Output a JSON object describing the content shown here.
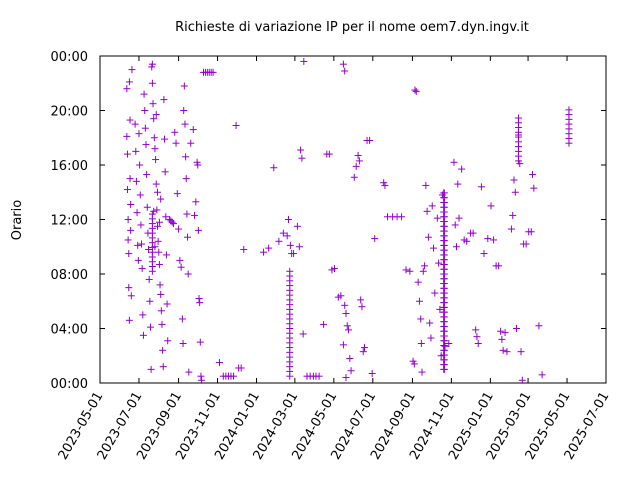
{
  "chart_data": {
    "type": "scatter",
    "title": "Richieste di variazione IP per il nome oem7.dyn.ingv.it",
    "xlabel": "",
    "ylabel": "Orario",
    "x_ticks": [
      "2023-05-01",
      "2023-07-01",
      "2023-09-01",
      "2023-11-01",
      "2024-01-01",
      "2024-03-01",
      "2024-05-01",
      "2024-07-01",
      "2024-09-01",
      "2024-11-01",
      "2025-01-01",
      "2025-03-01",
      "2025-05-01",
      "2025-07-01"
    ],
    "y_ticks": [
      "00:00",
      "04:00",
      "08:00",
      "12:00",
      "16:00",
      "20:00",
      "00:00"
    ],
    "xlim": [
      "2023-05-01",
      "2025-07-01"
    ],
    "ylim": [
      0,
      24
    ],
    "marker": "plus",
    "color": "#9400d3",
    "grid": false,
    "points": [
      [
        "2023-06-12",
        21.6
      ],
      [
        "2023-06-12",
        18.1
      ],
      [
        "2023-06-13",
        16.8
      ],
      [
        "2023-06-13",
        14.2
      ],
      [
        "2023-06-14",
        12.0
      ],
      [
        "2023-06-14",
        10.5
      ],
      [
        "2023-06-15",
        9.5
      ],
      [
        "2023-06-15",
        7.0
      ],
      [
        "2023-06-16",
        4.6
      ],
      [
        "2023-06-16",
        22.1
      ],
      [
        "2023-06-17",
        19.3
      ],
      [
        "2023-06-17",
        15.0
      ],
      [
        "2023-06-18",
        13.1
      ],
      [
        "2023-06-18",
        11.2
      ],
      [
        "2023-06-19",
        6.4
      ],
      [
        "2023-06-20",
        23.0
      ],
      [
        "2023-06-25",
        19.0
      ],
      [
        "2023-06-26",
        17.0
      ],
      [
        "2023-06-27",
        14.8
      ],
      [
        "2023-06-28",
        12.5
      ],
      [
        "2023-06-29",
        10.1
      ],
      [
        "2023-06-30",
        9.0
      ],
      [
        "2023-07-01",
        18.3
      ],
      [
        "2023-07-02",
        16.0
      ],
      [
        "2023-07-03",
        13.8
      ],
      [
        "2023-07-04",
        11.6
      ],
      [
        "2023-07-05",
        10.2
      ],
      [
        "2023-07-06",
        8.4
      ],
      [
        "2023-07-07",
        5.0
      ],
      [
        "2023-07-08",
        3.5
      ],
      [
        "2023-07-09",
        21.2
      ],
      [
        "2023-07-10",
        20.0
      ],
      [
        "2023-07-11",
        18.7
      ],
      [
        "2023-07-12",
        17.5
      ],
      [
        "2023-07-13",
        15.3
      ],
      [
        "2023-07-14",
        12.9
      ],
      [
        "2023-07-15",
        11.0
      ],
      [
        "2023-07-16",
        9.8
      ],
      [
        "2023-07-17",
        7.6
      ],
      [
        "2023-07-18",
        6.0
      ],
      [
        "2023-07-19",
        4.1
      ],
      [
        "2023-07-20",
        1.0
      ],
      [
        "2023-07-21",
        23.2
      ],
      [
        "2023-07-22",
        22.0
      ],
      [
        "2023-07-23",
        20.5
      ],
      [
        "2023-07-24",
        19.4
      ],
      [
        "2023-07-25",
        18.0
      ],
      [
        "2023-07-26",
        17.2
      ],
      [
        "2023-07-27",
        16.4
      ],
      [
        "2023-07-28",
        14.6
      ],
      [
        "2023-07-29",
        12.7
      ],
      [
        "2023-07-30",
        11.5
      ],
      [
        "2023-07-31",
        10.4
      ],
      [
        "2023-08-01",
        9.6
      ],
      [
        "2023-08-02",
        8.7
      ],
      [
        "2023-08-03",
        7.2
      ],
      [
        "2023-08-04",
        6.5
      ],
      [
        "2023-08-05",
        5.3
      ],
      [
        "2023-08-06",
        4.3
      ],
      [
        "2023-08-07",
        2.4
      ],
      [
        "2023-08-08",
        1.2
      ],
      [
        "2023-08-09",
        20.8
      ],
      [
        "2023-08-10",
        17.9
      ],
      [
        "2023-08-11",
        15.5
      ],
      [
        "2023-08-12",
        12.2
      ],
      [
        "2023-08-13",
        9.4
      ],
      [
        "2023-08-14",
        5.8
      ],
      [
        "2023-08-15",
        3.1
      ],
      [
        "2023-07-22",
        23.4
      ],
      [
        "2023-07-24",
        12.6
      ],
      [
        "2023-07-26",
        10.0
      ],
      [
        "2023-07-28",
        19.7
      ],
      [
        "2023-07-30",
        14.0
      ],
      [
        "2023-08-02",
        11.8
      ],
      [
        "2023-08-04",
        13.5
      ],
      [
        "2023-08-18",
        12.0
      ],
      [
        "2023-08-20",
        11.9
      ],
      [
        "2023-08-22",
        11.8
      ],
      [
        "2023-08-24",
        11.7
      ],
      [
        "2023-08-26",
        18.4
      ],
      [
        "2023-08-28",
        17.6
      ],
      [
        "2023-08-30",
        13.9
      ],
      [
        "2023-09-01",
        11.3
      ],
      [
        "2023-09-03",
        9.0
      ],
      [
        "2023-09-05",
        8.5
      ],
      [
        "2023-09-07",
        4.7
      ],
      [
        "2023-09-08",
        2.9
      ],
      [
        "2023-09-09",
        20.0
      ],
      [
        "2023-09-10",
        21.8
      ],
      [
        "2023-09-11",
        19.0
      ],
      [
        "2023-09-12",
        16.6
      ],
      [
        "2023-09-13",
        15.0
      ],
      [
        "2023-09-14",
        12.4
      ],
      [
        "2023-09-15",
        10.7
      ],
      [
        "2023-09-16",
        8.0
      ],
      [
        "2023-09-17",
        0.8
      ],
      [
        "2023-09-20",
        17.6
      ],
      [
        "2023-09-24",
        18.6
      ],
      [
        "2023-09-26",
        12.3
      ],
      [
        "2023-09-28",
        13.3
      ],
      [
        "2023-09-30",
        16.2
      ],
      [
        "2023-10-01",
        16.0
      ],
      [
        "2023-10-02",
        11.2
      ],
      [
        "2023-10-03",
        6.2
      ],
      [
        "2023-10-04",
        5.9
      ],
      [
        "2023-10-05",
        3.0
      ],
      [
        "2023-10-06",
        0.5
      ],
      [
        "2023-10-07",
        0.2
      ],
      [
        "2023-10-10",
        22.8
      ],
      [
        "2023-10-13",
        22.8
      ],
      [
        "2023-10-16",
        22.8
      ],
      [
        "2023-10-19",
        22.8
      ],
      [
        "2023-10-22",
        22.8
      ],
      [
        "2023-10-25",
        22.8
      ],
      [
        "2023-11-04",
        1.5
      ],
      [
        "2023-11-10",
        0.5
      ],
      [
        "2023-11-14",
        0.5
      ],
      [
        "2023-11-18",
        0.5
      ],
      [
        "2023-11-22",
        0.5
      ],
      [
        "2023-11-26",
        0.5
      ],
      [
        "2023-11-30",
        18.9
      ],
      [
        "2023-12-04",
        1.1
      ],
      [
        "2023-12-08",
        1.1
      ],
      [
        "2023-12-12",
        9.8
      ],
      [
        "2024-01-12",
        9.6
      ],
      [
        "2024-01-20",
        9.9
      ],
      [
        "2024-01-28",
        15.8
      ],
      [
        "2024-02-05",
        10.4
      ],
      [
        "2024-02-12",
        11.0
      ],
      [
        "2024-02-18",
        10.8
      ],
      [
        "2024-02-20",
        12.0
      ],
      [
        "2024-02-23",
        10.1
      ],
      [
        "2024-02-25",
        9.5
      ],
      [
        "2024-02-28",
        9.5
      ],
      [
        "2024-03-05",
        11.5
      ],
      [
        "2024-03-08",
        10.0
      ],
      [
        "2024-03-10",
        17.1
      ],
      [
        "2024-03-12",
        16.5
      ],
      [
        "2024-03-14",
        3.6
      ],
      [
        "2024-03-15",
        23.6
      ],
      [
        "2024-03-20",
        0.5
      ],
      [
        "2024-03-25",
        0.5
      ],
      [
        "2024-03-30",
        0.5
      ],
      [
        "2024-04-03",
        0.5
      ],
      [
        "2024-04-08",
        0.5
      ],
      [
        "2024-04-15",
        4.3
      ],
      [
        "2024-04-20",
        16.8
      ],
      [
        "2024-04-24",
        16.8
      ],
      [
        "2024-04-28",
        8.3
      ],
      [
        "2024-05-02",
        8.4
      ],
      [
        "2024-05-08",
        6.3
      ],
      [
        "2024-05-12",
        6.4
      ],
      [
        "2024-05-16",
        2.8
      ],
      [
        "2024-05-18",
        5.7
      ],
      [
        "2024-05-20",
        5.1
      ],
      [
        "2024-05-22",
        4.2
      ],
      [
        "2024-05-24",
        3.9
      ],
      [
        "2024-05-26",
        1.8
      ],
      [
        "2024-05-28",
        0.9
      ],
      [
        "2024-05-16",
        23.4
      ],
      [
        "2024-05-18",
        22.9
      ],
      [
        "2024-05-20",
        0.4
      ],
      [
        "2024-06-02",
        15.1
      ],
      [
        "2024-06-05",
        15.9
      ],
      [
        "2024-06-08",
        16.7
      ],
      [
        "2024-06-10",
        16.3
      ],
      [
        "2024-06-12",
        6.1
      ],
      [
        "2024-06-14",
        5.6
      ],
      [
        "2024-06-16",
        2.3
      ],
      [
        "2024-06-18",
        2.6
      ],
      [
        "2024-06-22",
        17.8
      ],
      [
        "2024-06-26",
        17.8
      ],
      [
        "2024-06-30",
        0.7
      ],
      [
        "2024-07-04",
        10.6
      ],
      [
        "2024-07-18",
        14.7
      ],
      [
        "2024-07-20",
        14.5
      ],
      [
        "2024-07-24",
        12.2
      ],
      [
        "2024-08-01",
        12.2
      ],
      [
        "2024-08-08",
        12.2
      ],
      [
        "2024-08-15",
        12.2
      ],
      [
        "2024-08-22",
        8.3
      ],
      [
        "2024-08-28",
        8.2
      ],
      [
        "2024-09-05",
        21.5
      ],
      [
        "2024-09-07",
        21.4
      ],
      [
        "2024-09-02",
        1.6
      ],
      [
        "2024-09-04",
        1.4
      ],
      [
        "2024-09-10",
        7.4
      ],
      [
        "2024-09-12",
        6.0
      ],
      [
        "2024-09-14",
        4.7
      ],
      [
        "2024-09-15",
        2.9
      ],
      [
        "2024-09-16",
        0.8
      ],
      [
        "2024-09-18",
        8.2
      ],
      [
        "2024-09-20",
        8.6
      ],
      [
        "2024-09-22",
        14.5
      ],
      [
        "2024-09-24",
        12.6
      ],
      [
        "2024-09-26",
        10.7
      ],
      [
        "2024-09-28",
        4.4
      ],
      [
        "2024-09-30",
        3.3
      ],
      [
        "2024-10-02",
        13.0
      ],
      [
        "2024-10-04",
        9.9
      ],
      [
        "2024-10-06",
        6.6
      ],
      [
        "2024-10-10",
        12.1
      ],
      [
        "2024-10-12",
        8.8
      ],
      [
        "2024-10-14",
        5.4
      ],
      [
        "2024-10-16",
        2.0
      ],
      [
        "2024-10-18",
        13.8
      ],
      [
        "2024-10-22",
        2.7
      ],
      [
        "2024-10-28",
        2.9
      ],
      [
        "2024-11-05",
        16.2
      ],
      [
        "2024-11-07",
        11.6
      ],
      [
        "2024-11-09",
        10.0
      ],
      [
        "2024-11-11",
        14.6
      ],
      [
        "2024-11-13",
        12.1
      ],
      [
        "2024-11-17",
        15.7
      ],
      [
        "2024-11-21",
        10.5
      ],
      [
        "2024-11-25",
        10.4
      ],
      [
        "2024-12-01",
        11.0
      ],
      [
        "2024-12-05",
        11.0
      ],
      [
        "2024-12-09",
        3.9
      ],
      [
        "2024-12-11",
        3.4
      ],
      [
        "2024-12-13",
        2.9
      ],
      [
        "2024-12-18",
        14.4
      ],
      [
        "2024-12-22",
        9.5
      ],
      [
        "2024-12-28",
        10.6
      ],
      [
        "2025-01-02",
        13.0
      ],
      [
        "2025-01-06",
        10.5
      ],
      [
        "2025-01-10",
        8.6
      ],
      [
        "2025-01-14",
        8.6
      ],
      [
        "2025-01-17",
        3.8
      ],
      [
        "2025-01-19",
        3.2
      ],
      [
        "2025-01-21",
        2.4
      ],
      [
        "2025-01-24",
        3.7
      ],
      [
        "2025-01-27",
        2.3
      ],
      [
        "2025-02-03",
        11.3
      ],
      [
        "2025-02-05",
        12.3
      ],
      [
        "2025-02-07",
        14.9
      ],
      [
        "2025-02-09",
        14.0
      ],
      [
        "2025-02-11",
        4.0
      ],
      [
        "2025-02-14",
        18.2
      ],
      [
        "2025-02-16",
        16.1
      ],
      [
        "2025-02-18",
        2.3
      ],
      [
        "2025-02-20",
        0.2
      ],
      [
        "2025-02-22",
        10.2
      ],
      [
        "2025-02-26",
        10.2
      ],
      [
        "2025-03-02",
        11.1
      ],
      [
        "2025-03-06",
        11.1
      ],
      [
        "2025-03-08",
        15.3
      ],
      [
        "2025-03-10",
        14.3
      ],
      [
        "2025-03-18",
        4.2
      ],
      [
        "2025-03-23",
        0.6
      ]
    ],
    "vertical_runs": [
      {
        "x": "2024-02-22",
        "y_from": 0.5,
        "y_to": 8.5
      },
      {
        "x": "2024-10-20",
        "y_from": 1.0,
        "y_to": 14.0
      },
      {
        "x": "2024-10-21",
        "y_from": 1.0,
        "y_to": 14.0
      },
      {
        "x": "2023-07-22",
        "y_from": 8.2,
        "y_to": 12.4
      },
      {
        "x": "2025-02-14",
        "y_from": 16.3,
        "y_to": 19.6
      },
      {
        "x": "2025-05-04",
        "y_from": 17.6,
        "y_to": 20.2
      }
    ]
  }
}
